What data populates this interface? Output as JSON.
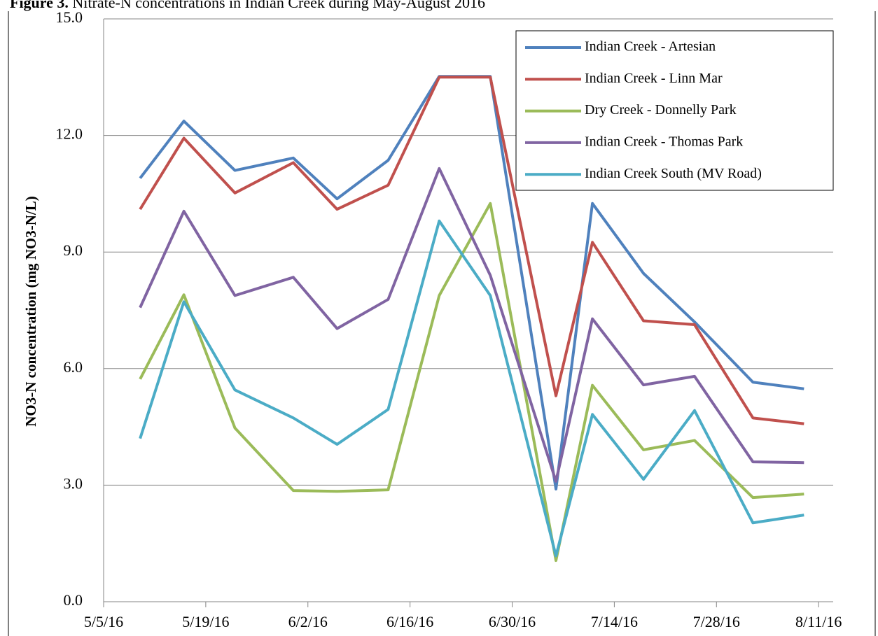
{
  "chart_data": {
    "type": "line",
    "title": "Figure 3. Nitrate-N concentrations in Indian Creek during May-August 2016",
    "y_label": "NO3-N concentration (mg NO3-N/L)",
    "x": [
      "2016-05-10",
      "2016-05-16",
      "2016-05-23",
      "2016-05-31",
      "2016-06-06",
      "2016-06-13",
      "2016-06-20",
      "2016-06-27",
      "2016-07-06",
      "2016-07-11",
      "2016-07-18",
      "2016-07-25",
      "2016-08-02",
      "2016-08-09"
    ],
    "series": [
      {
        "name": "Indian Creek - Artesian",
        "color": "#4f81bd",
        "values": [
          10.9,
          12.37,
          11.1,
          11.42,
          10.37,
          11.36,
          13.52,
          13.52,
          2.9,
          10.25,
          8.45,
          7.2,
          5.65,
          5.48
        ]
      },
      {
        "name": "Indian Creek - Linn Mar",
        "color": "#c0504d",
        "values": [
          10.1,
          11.93,
          10.52,
          11.3,
          10.1,
          10.72,
          13.5,
          13.5,
          5.3,
          9.25,
          7.23,
          7.13,
          4.73,
          4.58
        ]
      },
      {
        "name": "Dry Creek - Donnelly Park",
        "color": "#9bbb59",
        "values": [
          5.73,
          7.9,
          4.47,
          2.86,
          2.84,
          2.88,
          7.88,
          10.25,
          1.06,
          5.57,
          3.91,
          4.15,
          2.68,
          2.77
        ]
      },
      {
        "name": "Indian Creek - Thomas Park",
        "color": "#8064a2",
        "values": [
          7.57,
          10.05,
          7.88,
          8.35,
          7.03,
          7.78,
          11.15,
          8.4,
          3.1,
          7.28,
          5.58,
          5.8,
          3.6,
          3.58
        ]
      },
      {
        "name": "Indian Creek South (MV Road)",
        "color": "#4bacc6",
        "values": [
          4.2,
          7.72,
          5.45,
          4.73,
          4.05,
          4.95,
          9.8,
          7.88,
          1.18,
          4.82,
          3.15,
          4.92,
          2.03,
          2.23
        ]
      }
    ],
    "xlim": [
      "2016-05-05",
      "2016-08-13"
    ],
    "xticks": [
      {
        "value": "2016-05-05",
        "label": "5/5/16"
      },
      {
        "value": "2016-05-19",
        "label": "5/19/16"
      },
      {
        "value": "2016-06-02",
        "label": "6/2/16"
      },
      {
        "value": "2016-06-16",
        "label": "6/16/16"
      },
      {
        "value": "2016-06-30",
        "label": "6/30/16"
      },
      {
        "value": "2016-07-14",
        "label": "7/14/16"
      },
      {
        "value": "2016-07-28",
        "label": "7/28/16"
      },
      {
        "value": "2016-08-11",
        "label": "8/11/16"
      }
    ],
    "ylim": [
      0,
      15
    ],
    "yticks": [
      {
        "value": 0,
        "label": "0.0"
      },
      {
        "value": 3,
        "label": "3.0"
      },
      {
        "value": 6,
        "label": "6.0"
      },
      {
        "value": 9,
        "label": "9.0"
      },
      {
        "value": 12,
        "label": "12.0"
      },
      {
        "value": 15,
        "label": "15.0"
      }
    ],
    "grid": true,
    "legend": "top-right"
  }
}
